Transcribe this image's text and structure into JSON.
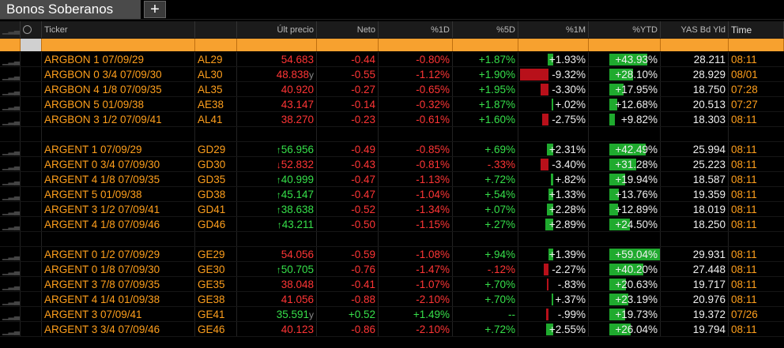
{
  "tab": {
    "title": "Bonos Soberanos",
    "add_label": "+"
  },
  "headers": {
    "ticker": "Ticker",
    "ult_precio": "Últ precio",
    "neto": "Neto",
    "pct_1d": "%1D",
    "pct_5d": "%5D",
    "pct_1m": "%1M",
    "pct_ytd": "%YTD",
    "yas": "YAS Bd Yld",
    "time": "Time"
  },
  "colors": {
    "orange": "#ff9f1c",
    "red": "#ff3535",
    "green": "#36e04a",
    "header_band": "#f7a12f"
  },
  "groups": [
    {
      "rows": [
        {
          "name": "ARGBON 1 07/09/29",
          "code": "AL29",
          "arrow": "",
          "price": "54.683",
          "price_suffix": "",
          "price_color": "rd",
          "neto": "-0.44",
          "neto_color": "rd",
          "d1": "-0.80%",
          "d1_color": "rd",
          "d5": "+1.87%",
          "d5_color": "gr",
          "m1": "+1.93%",
          "m1_bar": 0.09,
          "m1_dir": "g",
          "ytd": "+43.93%",
          "ytd_bar": 0.6,
          "ytd_dir": "g",
          "yld": "28.211",
          "time": "08:11"
        },
        {
          "name": "ARGBON 0 3/4 07/09/30",
          "code": "AL30",
          "arrow": "",
          "price": "48.838",
          "price_suffix": "y",
          "price_color": "rd",
          "neto": "-0.55",
          "neto_color": "rd",
          "d1": "-1.12%",
          "d1_color": "rd",
          "d5": "+1.90%",
          "d5_color": "gr",
          "m1": "-9.32%",
          "m1_bar": 0.45,
          "m1_dir": "r",
          "ytd": "+28.10%",
          "ytd_bar": 0.38,
          "ytd_dir": "g",
          "yld": "28.929",
          "time": "08/01"
        },
        {
          "name": "ARGBON 4 1/8 07/09/35",
          "code": "AL35",
          "arrow": "",
          "price": "40.920",
          "price_suffix": "",
          "price_color": "rd",
          "neto": "-0.27",
          "neto_color": "rd",
          "d1": "-0.65%",
          "d1_color": "rd",
          "d5": "+1.95%",
          "d5_color": "gr",
          "m1": "-3.30%",
          "m1_bar": 0.12,
          "m1_dir": "r",
          "ytd": "+17.95%",
          "ytd_bar": 0.22,
          "ytd_dir": "g",
          "yld": "18.750",
          "time": "07:28"
        },
        {
          "name": "ARGBON 5 01/09/38",
          "code": "AE38",
          "arrow": "",
          "price": "43.147",
          "price_suffix": "",
          "price_color": "rd",
          "neto": "-0.14",
          "neto_color": "rd",
          "d1": "-0.32%",
          "d1_color": "rd",
          "d5": "+1.87%",
          "d5_color": "gr",
          "m1": "+.02%",
          "m1_bar": 0.02,
          "m1_dir": "g",
          "ytd": "+12.68%",
          "ytd_bar": 0.13,
          "ytd_dir": "g",
          "yld": "20.513",
          "time": "07:27"
        },
        {
          "name": "ARGBON 3 1/2 07/09/41",
          "code": "AL41",
          "arrow": "",
          "price": "38.270",
          "price_suffix": "",
          "price_color": "rd",
          "neto": "-0.23",
          "neto_color": "rd",
          "d1": "-0.61%",
          "d1_color": "rd",
          "d5": "+1.60%",
          "d5_color": "gr",
          "m1": "-2.75%",
          "m1_bar": 0.1,
          "m1_dir": "r",
          "ytd": "+9.82%",
          "ytd_bar": 0.09,
          "ytd_dir": "g",
          "yld": "18.303",
          "time": "08:11"
        }
      ]
    },
    {
      "rows": [
        {
          "name": "ARGENT 1 07/09/29",
          "code": "GD29",
          "arrow": "↑",
          "price": "56.956",
          "price_suffix": "",
          "price_color": "gr",
          "neto": "-0.49",
          "neto_color": "rd",
          "d1": "-0.85%",
          "d1_color": "rd",
          "d5": "+.69%",
          "d5_color": "gr",
          "m1": "+2.31%",
          "m1_bar": 0.1,
          "m1_dir": "g",
          "ytd": "+42.49%",
          "ytd_bar": 0.58,
          "ytd_dir": "g",
          "yld": "25.994",
          "time": "08:11"
        },
        {
          "name": "ARGENT 0 3/4 07/09/30",
          "code": "GD30",
          "arrow": "↓",
          "price": "52.832",
          "price_suffix": "",
          "price_color": "rd",
          "neto": "-0.43",
          "neto_color": "rd",
          "d1": "-0.81%",
          "d1_color": "rd",
          "d5": "-.33%",
          "d5_color": "rd",
          "m1": "-3.40%",
          "m1_bar": 0.13,
          "m1_dir": "r",
          "ytd": "+31.28%",
          "ytd_bar": 0.42,
          "ytd_dir": "g",
          "yld": "25.223",
          "time": "08:11"
        },
        {
          "name": "ARGENT 4 1/8 07/09/35",
          "code": "GD35",
          "arrow": "↑",
          "price": "40.999",
          "price_suffix": "",
          "price_color": "gr",
          "neto": "-0.47",
          "neto_color": "rd",
          "d1": "-1.13%",
          "d1_color": "rd",
          "d5": "+.72%",
          "d5_color": "gr",
          "m1": "+.82%",
          "m1_bar": 0.04,
          "m1_dir": "g",
          "ytd": "+19.94%",
          "ytd_bar": 0.25,
          "ytd_dir": "g",
          "yld": "18.587",
          "time": "08:11"
        },
        {
          "name": "ARGENT 5 01/09/38",
          "code": "GD38",
          "arrow": "↑",
          "price": "45.147",
          "price_suffix": "",
          "price_color": "gr",
          "neto": "-0.47",
          "neto_color": "rd",
          "d1": "-1.04%",
          "d1_color": "rd",
          "d5": "+.54%",
          "d5_color": "gr",
          "m1": "+1.33%",
          "m1_bar": 0.07,
          "m1_dir": "g",
          "ytd": "+13.76%",
          "ytd_bar": 0.15,
          "ytd_dir": "g",
          "yld": "19.359",
          "time": "08:11"
        },
        {
          "name": "ARGENT 3 1/2 07/09/41",
          "code": "GD41",
          "arrow": "↑",
          "price": "38.638",
          "price_suffix": "",
          "price_color": "gr",
          "neto": "-0.52",
          "neto_color": "rd",
          "d1": "-1.34%",
          "d1_color": "rd",
          "d5": "+.07%",
          "d5_color": "gr",
          "m1": "+2.28%",
          "m1_bar": 0.1,
          "m1_dir": "g",
          "ytd": "+12.89%",
          "ytd_bar": 0.14,
          "ytd_dir": "g",
          "yld": "18.019",
          "time": "08:11"
        },
        {
          "name": "ARGENT 4 1/8 07/09/46",
          "code": "GD46",
          "arrow": "↑",
          "price": "43.211",
          "price_suffix": "",
          "price_color": "gr",
          "neto": "-0.50",
          "neto_color": "rd",
          "d1": "-1.15%",
          "d1_color": "rd",
          "d5": "+.27%",
          "d5_color": "gr",
          "m1": "+2.89%",
          "m1_bar": 0.12,
          "m1_dir": "g",
          "ytd": "+24.50%",
          "ytd_bar": 0.32,
          "ytd_dir": "g",
          "yld": "18.250",
          "time": "08:11"
        }
      ]
    },
    {
      "rows": [
        {
          "name": "ARGENT 0 1/2 07/09/29",
          "code": "GE29",
          "arrow": "",
          "price": "54.056",
          "price_suffix": "",
          "price_color": "rd",
          "neto": "-0.59",
          "neto_color": "rd",
          "d1": "-1.08%",
          "d1_color": "rd",
          "d5": "+.94%",
          "d5_color": "gr",
          "m1": "+1.39%",
          "m1_bar": 0.07,
          "m1_dir": "g",
          "ytd": "+59.04%",
          "ytd_bar": 0.82,
          "ytd_dir": "g",
          "yld": "29.931",
          "time": "08:11"
        },
        {
          "name": "ARGENT 0 1/8 07/09/30",
          "code": "GE30",
          "arrow": "↑",
          "price": "50.705",
          "price_suffix": "",
          "price_color": "gr",
          "neto": "-0.76",
          "neto_color": "rd",
          "d1": "-1.47%",
          "d1_color": "rd",
          "d5": "-.12%",
          "d5_color": "rd",
          "m1": "-2.27%",
          "m1_bar": 0.08,
          "m1_dir": "r",
          "ytd": "+40.20%",
          "ytd_bar": 0.54,
          "ytd_dir": "g",
          "yld": "27.448",
          "time": "08:11"
        },
        {
          "name": "ARGENT 3 7/8 07/09/35",
          "code": "GE35",
          "arrow": "",
          "price": "38.048",
          "price_suffix": "",
          "price_color": "rd",
          "neto": "-0.41",
          "neto_color": "rd",
          "d1": "-1.07%",
          "d1_color": "rd",
          "d5": "+.70%",
          "d5_color": "gr",
          "m1": "-.83%",
          "m1_bar": 0.03,
          "m1_dir": "r",
          "ytd": "+20.63%",
          "ytd_bar": 0.26,
          "ytd_dir": "g",
          "yld": "19.717",
          "time": "08:11"
        },
        {
          "name": "ARGENT 4 1/4 01/09/38",
          "code": "GE38",
          "arrow": "",
          "price": "41.056",
          "price_suffix": "",
          "price_color": "rd",
          "neto": "-0.88",
          "neto_color": "rd",
          "d1": "-2.10%",
          "d1_color": "rd",
          "d5": "+.70%",
          "d5_color": "gr",
          "m1": "+.37%",
          "m1_bar": 0.02,
          "m1_dir": "g",
          "ytd": "+23.19%",
          "ytd_bar": 0.3,
          "ytd_dir": "g",
          "yld": "20.976",
          "time": "08:11"
        },
        {
          "name": "ARGENT 3 07/09/41",
          "code": "GE41",
          "arrow": "",
          "price": "35.591",
          "price_suffix": "y",
          "price_color": "gr",
          "neto": "+0.52",
          "neto_color": "gr",
          "d1": "+1.49%",
          "d1_color": "gr",
          "d5": "--",
          "d5_color": "gr",
          "m1": "-.99%",
          "m1_bar": 0.04,
          "m1_dir": "r",
          "ytd": "+19.73%",
          "ytd_bar": 0.25,
          "ytd_dir": "g",
          "yld": "19.372",
          "time": "07/26"
        },
        {
          "name": "ARGENT 3 3/4 07/09/46",
          "code": "GE46",
          "arrow": "",
          "price": "40.123",
          "price_suffix": "",
          "price_color": "rd",
          "neto": "-0.86",
          "neto_color": "rd",
          "d1": "-2.10%",
          "d1_color": "rd",
          "d5": "+.72%",
          "d5_color": "gr",
          "m1": "+2.55%",
          "m1_bar": 0.11,
          "m1_dir": "g",
          "ytd": "+26.04%",
          "ytd_bar": 0.34,
          "ytd_dir": "g",
          "yld": "19.794",
          "time": "08:11"
        }
      ]
    }
  ]
}
